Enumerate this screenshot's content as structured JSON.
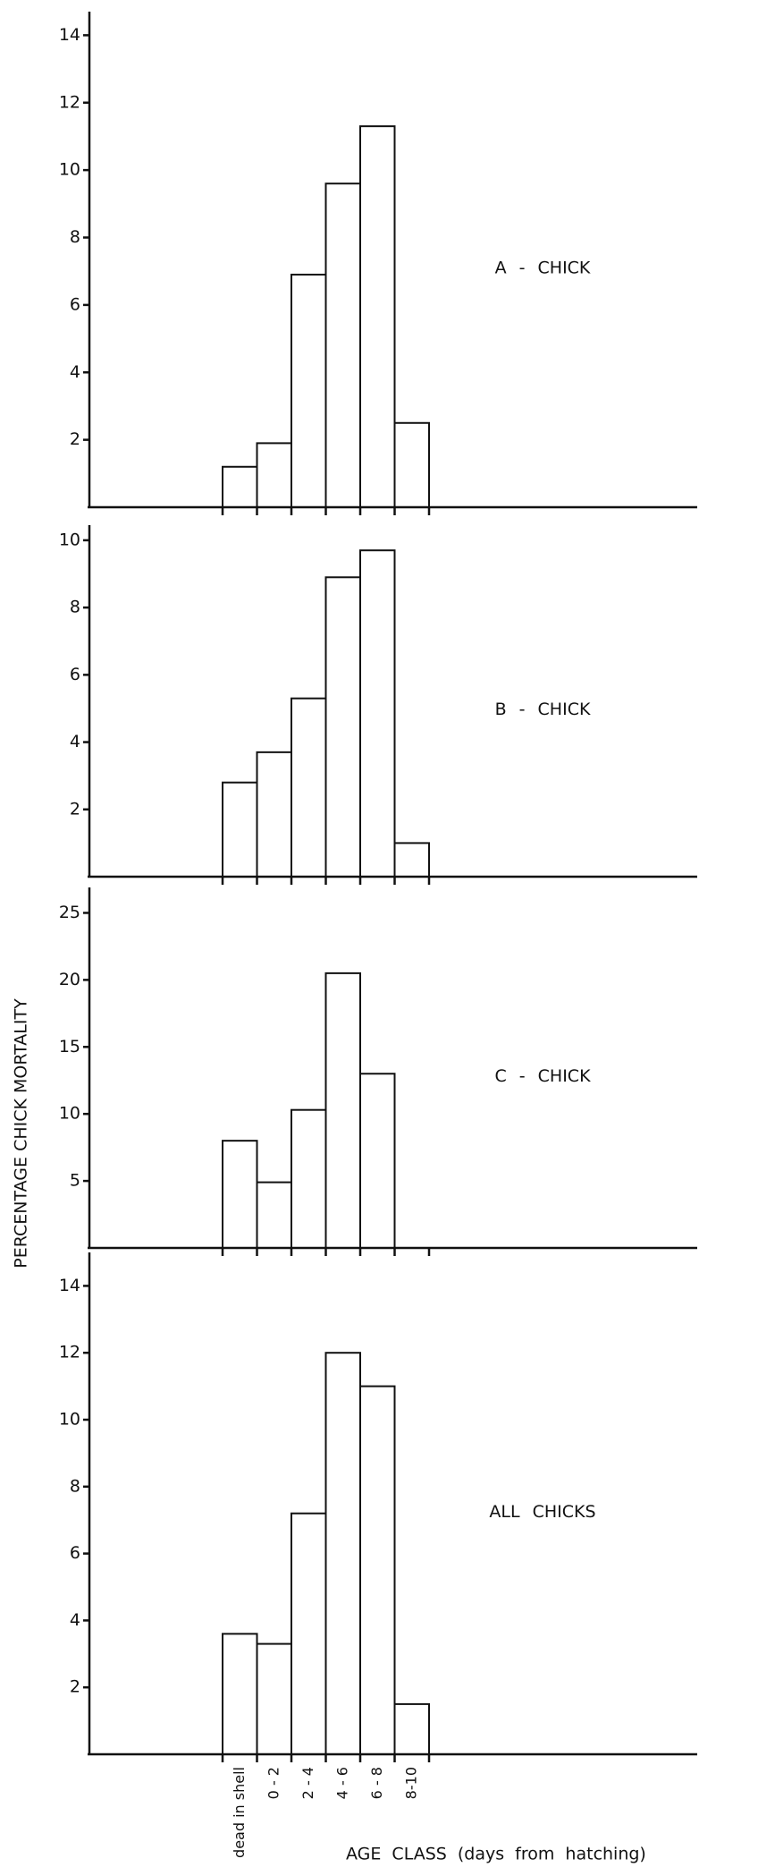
{
  "axis_labels": {
    "y": "PERCENTAGE CHICK MORTALITY",
    "x": "AGE CLASS (days from hatching)"
  },
  "chart_data": [
    {
      "type": "bar",
      "label": "A - CHICK",
      "values": [
        1.2,
        1.9,
        6.9,
        9.6,
        11.3,
        2.5
      ],
      "ylim": [
        0,
        14.7
      ],
      "yticks": [
        2,
        4,
        6,
        8,
        10,
        12,
        14
      ],
      "color": "#ffffff"
    },
    {
      "type": "bar",
      "label": "B - CHICK",
      "values": [
        2.8,
        3.7,
        5.3,
        8.9,
        9.7,
        1.0
      ],
      "ylim": [
        0,
        10.45
      ],
      "yticks": [
        2,
        4,
        6,
        8,
        10
      ],
      "color": "#ffffff"
    },
    {
      "type": "bar",
      "label": "C - CHICK",
      "values": [
        8.0,
        4.9,
        10.3,
        20.5,
        13.0,
        null
      ],
      "ylim": [
        0,
        26.9
      ],
      "yticks": [
        5,
        10,
        15,
        20,
        25
      ],
      "color": "#ffffff"
    },
    {
      "type": "bar",
      "label": "ALL CHICKS",
      "categories": [
        "dead in shell",
        "0 - 2",
        "2 - 4",
        "4 - 6",
        "6 - 8",
        "8-10"
      ],
      "values": [
        3.6,
        3.3,
        7.2,
        12.0,
        11.0,
        1.5
      ],
      "ylim": [
        0,
        15
      ],
      "yticks": [
        2,
        4,
        6,
        8,
        10,
        12,
        14
      ],
      "color": "#ffffff"
    }
  ]
}
